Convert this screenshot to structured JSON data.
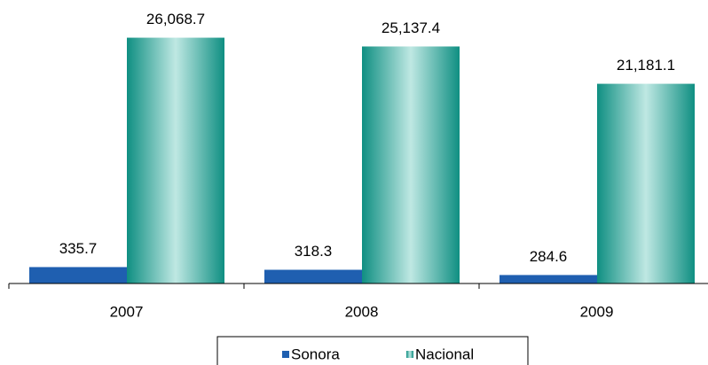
{
  "chart_data": {
    "type": "bar",
    "categories": [
      "2007",
      "2008",
      "2009"
    ],
    "series": [
      {
        "name": "Sonora",
        "color": "#1f5fb0",
        "axis": "y2",
        "values": [
          335.7,
          318.3,
          284.6
        ]
      },
      {
        "name": "Nacional",
        "color": "#17998c",
        "values": [
          26068.7,
          25137.4,
          21181.1
        ],
        "value_labels": [
          "26,068.7",
          "25,137.4",
          "21,181.1"
        ]
      }
    ],
    "ylim": [
      0,
      28000
    ],
    "y2lim": [
      230,
      1930
    ],
    "grid": false,
    "legend": "bottom"
  }
}
